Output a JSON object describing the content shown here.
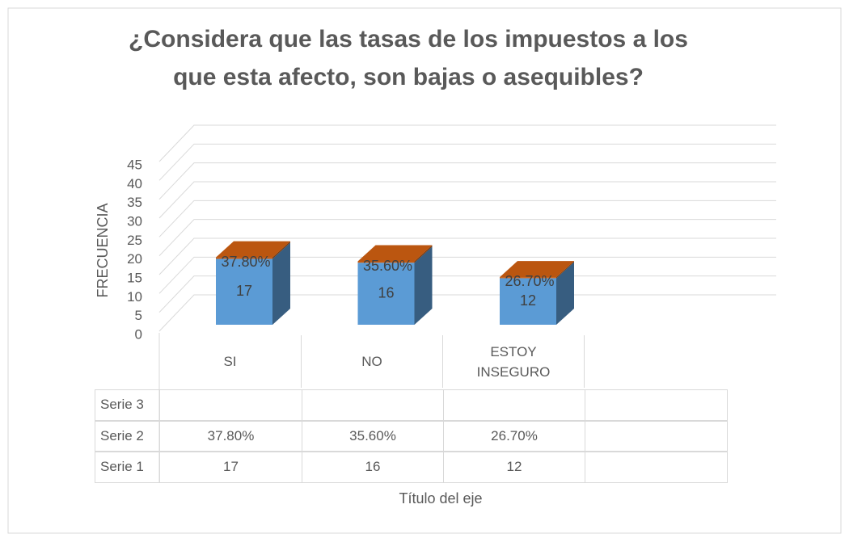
{
  "chart_data": {
    "type": "bar3d_stacked",
    "title": "¿Considera que las tasas de los impuestos a los que esta afecto, son bajas o asequibles?",
    "y_label": "FRECUENCIA",
    "x_label": "Título del eje",
    "categories": [
      "SI",
      "NO",
      "ESTOY INSEGURO"
    ],
    "series": [
      {
        "name": "Serie 1",
        "color": "#5b9bd5",
        "values": [
          17,
          16,
          12
        ]
      },
      {
        "name": "Serie 2",
        "color": "#c55a11",
        "values": [
          0.378,
          0.356,
          0.267
        ],
        "value_labels": [
          "37.80%",
          "35.60%",
          "26.70%"
        ]
      },
      {
        "name": "Serie 3",
        "color": "#a5a5a5",
        "values": [
          null,
          null,
          null
        ]
      }
    ],
    "ylim": [
      0,
      45
    ],
    "yticks": [
      0,
      5,
      10,
      15,
      20,
      25,
      30,
      35,
      40,
      45
    ],
    "grid": true,
    "data_table": true
  }
}
